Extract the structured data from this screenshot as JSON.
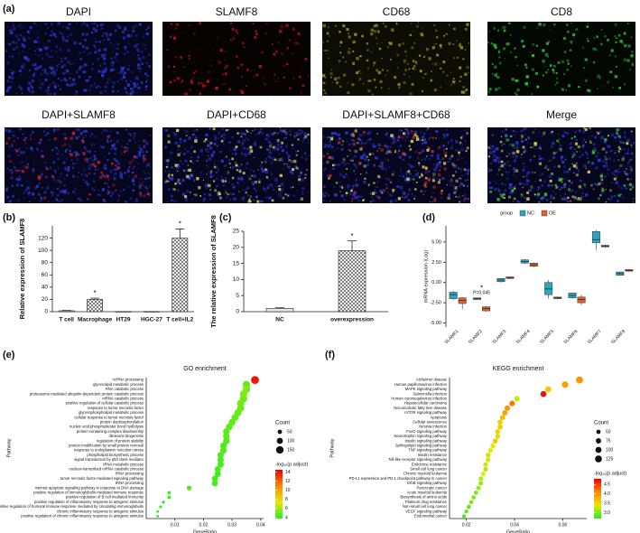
{
  "figure_a": {
    "panel": "(a)",
    "labels": [
      "DAPI",
      "SLAMF8",
      "CD68",
      "CD8",
      "DAPI+SLAMF8",
      "DAPI+CD68",
      "DAPI+SLAMF8+CD68",
      "Merge"
    ]
  },
  "chart_data": [
    {
      "type": "bar",
      "panel": "(b)",
      "ylabel": "Relative expression of SLAMF8",
      "categories": [
        "T cell",
        "Macrophage",
        "HT29",
        "HGC-27",
        "T cell+IL2"
      ],
      "values": [
        1.5,
        20,
        0.3,
        0.3,
        120
      ],
      "errors": [
        0.5,
        2,
        0,
        0,
        15
      ],
      "color": "#e6e6e6",
      "pattern": "crosshatch",
      "ylim": [
        0,
        140
      ],
      "yticks": [
        0,
        20,
        40,
        60,
        80,
        100,
        120
      ],
      "annotations": [
        {
          "text": "*",
          "category": "Macrophage"
        },
        {
          "text": "*",
          "category": "T cell+IL2"
        }
      ]
    },
    {
      "type": "bar",
      "panel": "(c)",
      "ylabel": "The relative expression of SLAMF8",
      "categories": [
        "NC",
        "overexpression"
      ],
      "values": [
        1,
        19
      ],
      "errors": [
        0.2,
        3
      ],
      "color": "#e6e6e6",
      "pattern": "crosshatch",
      "ylim": [
        0,
        25
      ],
      "yticks": [
        0,
        5,
        10,
        15,
        20,
        25
      ],
      "annotations": [
        {
          "text": "*",
          "category": "overexpression"
        }
      ]
    },
    {
      "type": "box",
      "panel": "(d)",
      "ylabel": "mRNA expression (Log)",
      "legend_title": "group",
      "categories": [
        "SLAMF1",
        "SLAMF2",
        "SLAMF3",
        "SLAMF4",
        "SLAMF5",
        "SLAMF6",
        "SLAMF7",
        "SLAMF8"
      ],
      "series": [
        {
          "name": "NC",
          "color": "#2ba6bd",
          "values": [
            [
              -2.2,
              -2.0,
              -1.5,
              -1.2,
              -1.0
            ],
            [
              -2.15,
              -2.1,
              -2.0,
              -1.9,
              -1.85
            ],
            [
              0.0,
              0.1,
              0.3,
              0.5,
              0.55
            ],
            [
              2.3,
              2.4,
              2.6,
              2.8,
              2.9
            ],
            [
              -2.0,
              -1.5,
              -0.8,
              0.0,
              0.3
            ],
            [
              -2.0,
              -1.9,
              -1.6,
              -1.3,
              -1.2
            ],
            [
              4.0,
              4.9,
              5.3,
              6.3,
              6.5
            ],
            [
              0.8,
              0.9,
              1.1,
              1.3,
              1.35
            ]
          ]
        },
        {
          "name": "OE",
          "color": "#e0612d",
          "values": [
            [
              -3.3,
              -2.6,
              -2.2,
              -1.9,
              -1.8
            ],
            [
              -3.6,
              -3.5,
              -3.2,
              -3.0,
              -2.9
            ],
            [
              0.45,
              0.5,
              0.6,
              0.7,
              0.75
            ],
            [
              1.9,
              2.0,
              2.2,
              2.4,
              2.45
            ],
            [
              -2.05,
              -2.0,
              -1.9,
              -1.8,
              -1.75
            ],
            [
              -2.8,
              -2.5,
              -2.1,
              -1.8,
              -1.5
            ],
            [
              4.3,
              4.4,
              4.5,
              4.6,
              4.65
            ],
            [
              1.35,
              1.4,
              1.5,
              1.6,
              1.65
            ]
          ]
        }
      ],
      "ylim": [
        -5.5,
        7
      ],
      "yticks": [
        {
          "value": -5,
          "label": "-5.00"
        },
        {
          "value": -2.5,
          "label": "-2.50"
        },
        {
          "value": 0,
          "label": "0.00"
        },
        {
          "value": 2.5,
          "label": "2.50"
        },
        {
          "value": 5,
          "label": "5.00"
        }
      ],
      "annotations": [
        {
          "text": "*",
          "category": "SLAMF2"
        },
        {
          "text": "P=0.045",
          "category": "SLAMF2"
        }
      ]
    },
    {
      "type": "dot",
      "panel": "(e)",
      "title": "GO enrichment",
      "xlabel": "GeneRatio",
      "ylabel": "Pathway",
      "categories": [
        "ncRNA processing",
        "glycerolipid metabolic process",
        "RNA catabolic process",
        "proteasome-mediated ubiquitin-dependent protein catabolic process",
        "mRNA catabolic process",
        "positive regulation of cellular catabolic process",
        "response to tumor necrosis factor",
        "glycerophospholipid metabolic process",
        "cellular response to tumor necrosis factor",
        "protein dephosphorylation",
        "nucleic acid phosphodiester bond hydrolysis",
        "protein-containing complex disassembly",
        "ribosome biogenesis",
        "regulation of protein stability",
        "protein modification by small protein removal",
        "response to endoplasmic reticulum stress",
        "phospholipid biosynthetic process",
        "signal transduction by p53 class mediator",
        "tRNA metabolic process",
        "nuclear-transcribed mRNA catabolic process",
        "rRNA processing",
        "tumor necrosis factor-mediated signaling pathway",
        "tRNA processing",
        "intrinsic apoptotic signaling pathway in response to DNA damage",
        "positive regulation of immunoglobulin mediated immune response",
        "positive regulation of B cell mediated immunity",
        "positive regulation of inflammatory response to antigenic stimulus",
        "positive regulation of humoral immune response mediated by circulating immunoglobulin",
        "chronic inflammatory response to antigenic stimulus",
        "positive regulation of chronic inflammatory response to antigenic stimulus"
      ],
      "values": [
        0.038,
        0.035,
        0.035,
        0.034,
        0.034,
        0.033,
        0.033,
        0.032,
        0.031,
        0.03,
        0.029,
        0.028,
        0.028,
        0.028,
        0.027,
        0.027,
        0.026,
        0.026,
        0.026,
        0.025,
        0.025,
        0.024,
        0.024,
        0.015,
        0.008,
        0.008,
        0.006,
        0.005,
        0.004,
        0.004
      ],
      "counts": [
        165,
        150,
        150,
        145,
        145,
        140,
        140,
        135,
        130,
        125,
        120,
        118,
        118,
        115,
        112,
        112,
        108,
        108,
        105,
        102,
        102,
        100,
        100,
        62,
        32,
        32,
        25,
        22,
        18,
        18
      ],
      "color_values": [
        14,
        5,
        5.5,
        5.5,
        5.2,
        5.2,
        5,
        5,
        5,
        4.9,
        4.8,
        4.8,
        4.8,
        4.7,
        4.6,
        4.6,
        4.5,
        4.5,
        4.5,
        4.5,
        4.4,
        4.4,
        4.4,
        4.8,
        4.3,
        4.3,
        4.2,
        4.2,
        4.1,
        4.1
      ],
      "xlim": [
        0,
        0.041
      ],
      "xticks": [
        0.01,
        0.02,
        0.03,
        0.04
      ],
      "size_title": "Count",
      "size_ticks": [
        50,
        100,
        150
      ],
      "color_title": "-log₁₀(p.adjust)",
      "clim": [
        3.8,
        14.5
      ],
      "color_ticks": [
        4,
        6,
        8,
        10,
        12,
        14
      ],
      "colorscale": [
        "#22ee22",
        "#e8e800",
        "#ff8800",
        "#ee0000"
      ]
    },
    {
      "type": "dot",
      "panel": "(f)",
      "title": "KEGG enrichment",
      "xlabel": "GeneRatio",
      "ylabel": "Pathway",
      "categories": [
        "Alzheimer disease",
        "Human papillomavirus infection",
        "MAPK signaling pathway",
        "Salmonella infection",
        "Human cytomegalovirus infection",
        "Hepatocellular carcinoma",
        "Non-alcoholic fatty liver disease",
        "mTOR signaling pathway",
        "Apoptosis",
        "Cellular senescence",
        "Yersinia infection",
        "FoxO signaling pathway",
        "Neurotrophin signaling pathway",
        "Insulin signaling pathway",
        "Sphingolipid signaling pathway",
        "TNF signaling pathway",
        "Insulin resistance",
        "Toll-like receptor signaling pathway",
        "Endocrine resistance",
        "Small cell lung cancer",
        "Chronic myeloid leukemia",
        "PD-L1 expression and PD-1 checkpoint pathway in cancer",
        "ErbB signaling pathway",
        "Pancreatic cancer",
        "Acute myeloid leukemia",
        "Biosynthesis of amino acids",
        "Platinum drug resistance",
        "Non-small cell lung cancer",
        "VEGF signaling pathway",
        "Endometrial cancer"
      ],
      "values": [
        0.067,
        0.061,
        0.054,
        0.052,
        0.041,
        0.039,
        0.037,
        0.036,
        0.035,
        0.034,
        0.034,
        0.033,
        0.033,
        0.032,
        0.031,
        0.03,
        0.029,
        0.029,
        0.028,
        0.028,
        0.027,
        0.026,
        0.026,
        0.025,
        0.024,
        0.023,
        0.022,
        0.021,
        0.02,
        0.019
      ],
      "counts": [
        130,
        115,
        100,
        95,
        85,
        80,
        78,
        75,
        72,
        70,
        70,
        68,
        68,
        66,
        64,
        62,
        60,
        60,
        58,
        58,
        56,
        54,
        54,
        52,
        50,
        48,
        46,
        44,
        42,
        40
      ],
      "color_values": [
        4.0,
        3.9,
        3.6,
        4.7,
        3.3,
        4.2,
        4.0,
        3.9,
        3.7,
        3.6,
        3.6,
        3.5,
        3.5,
        3.6,
        3.4,
        3.4,
        3.3,
        3.3,
        3.3,
        3.2,
        3.4,
        3.2,
        3.1,
        3.1,
        3.0,
        3.0,
        3.0,
        2.9,
        2.9,
        2.8
      ],
      "xlim": [
        0.013,
        0.07
      ],
      "xticks": [
        0.02,
        0.04,
        0.06
      ],
      "size_title": "Count",
      "size_ticks": [
        50,
        75,
        100,
        125
      ],
      "color_title": "-log₁₀(p.adjust)",
      "clim": [
        2.7,
        4.8
      ],
      "color_ticks": [
        {
          "value": 3,
          "label": "3.0"
        },
        {
          "value": 3.5,
          "label": "3.5"
        },
        {
          "value": 4,
          "label": "4.0"
        },
        {
          "value": 4.5,
          "label": "4.5"
        }
      ],
      "colorscale": [
        "#22ee22",
        "#e8e800",
        "#ff8800",
        "#ee0000"
      ]
    }
  ]
}
